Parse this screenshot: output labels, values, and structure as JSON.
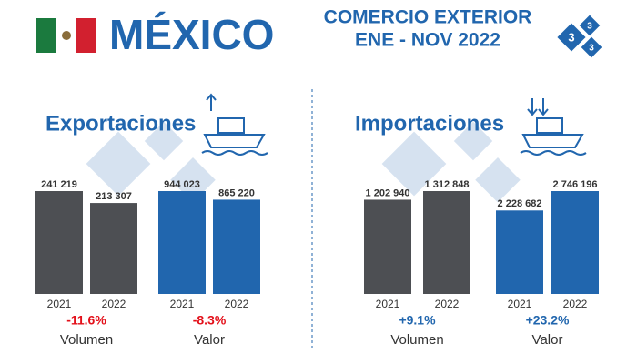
{
  "header": {
    "country": "MÉXICO",
    "title_line1": "COMERCIO EXTERIOR",
    "title_line2": "ENE - NOV 2022"
  },
  "sections": [
    {
      "title": "Exportaciones"
    },
    {
      "title": "Importaciones"
    }
  ],
  "chart_data": [
    {
      "type": "bar",
      "categories": [
        "2021",
        "2022"
      ],
      "values": [
        241219,
        213307
      ],
      "value_labels": [
        "241 219",
        "213 307"
      ],
      "color": "#4d4f53",
      "xlabel": "Volumen",
      "change": "-11.6%",
      "change_color": "#e3101a"
    },
    {
      "type": "bar",
      "categories": [
        "2021",
        "2022"
      ],
      "values": [
        944023,
        865220
      ],
      "value_labels": [
        "944 023",
        "865 220"
      ],
      "color": "#2166ae",
      "xlabel": "Valor",
      "change": "-8.3%",
      "change_color": "#e3101a"
    },
    {
      "type": "bar",
      "categories": [
        "2021",
        "2022"
      ],
      "values": [
        1202940,
        1312848
      ],
      "value_labels": [
        "1 202 940",
        "1 312 848"
      ],
      "color": "#4d4f53",
      "xlabel": "Volumen",
      "change": "+9.1%",
      "change_color": "#2166ae"
    },
    {
      "type": "bar",
      "categories": [
        "2021",
        "2022"
      ],
      "values": [
        2228682,
        2746196
      ],
      "value_labels": [
        "2 228 682",
        "2 746 196"
      ],
      "color": "#2166ae",
      "xlabel": "Valor",
      "change": "+23.2%",
      "change_color": "#2166ae"
    }
  ]
}
